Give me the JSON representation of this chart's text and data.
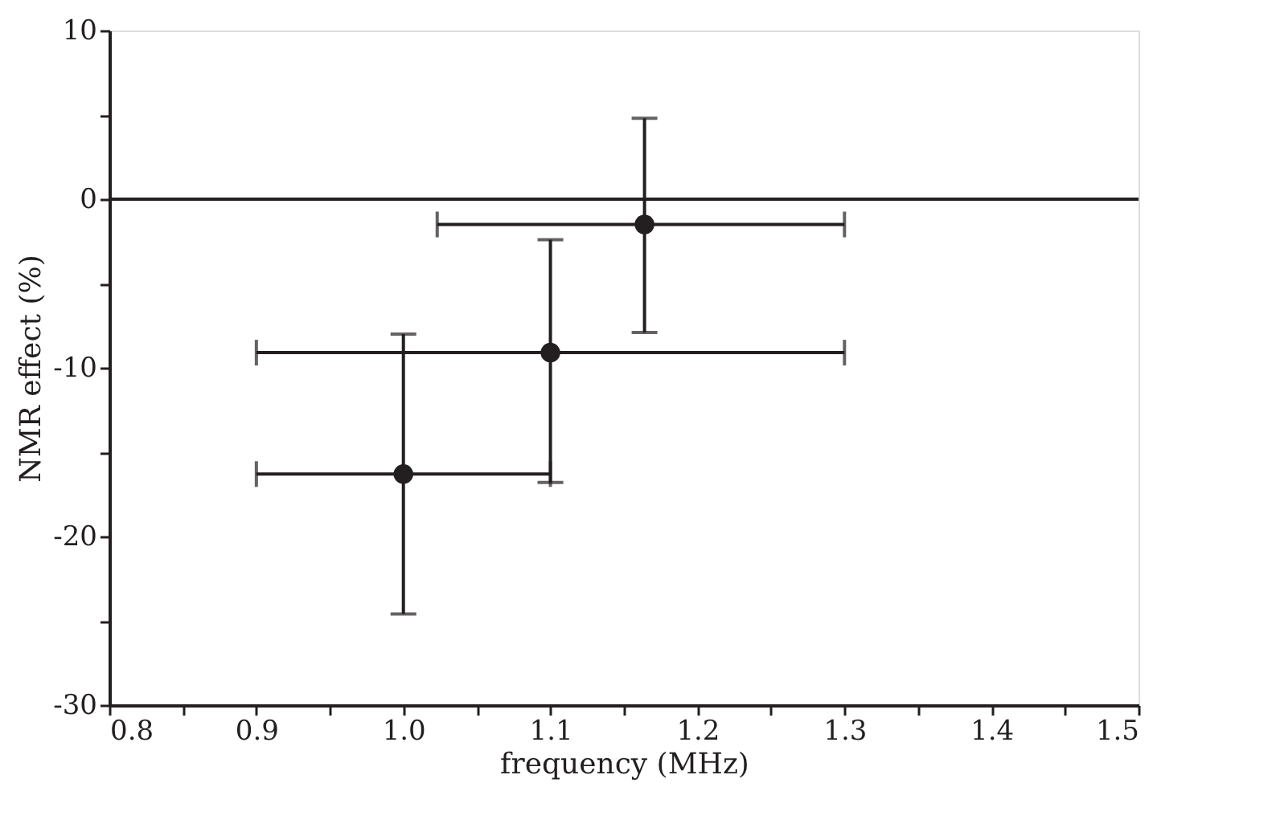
{
  "chart_data": {
    "type": "scatter",
    "xlabel": "frequency (MHz)",
    "ylabel": "NMR effect (%)",
    "x": [
      1.0,
      1.1,
      1.164
    ],
    "series": [
      {
        "color": "#231f20",
        "values": [
          -16.3,
          -9.1,
          -1.5
        ],
        "errors": [
          [
            -24.6,
            -8.0
          ],
          [
            -16.8,
            -2.4
          ],
          [
            -7.9,
            4.8
          ]
        ],
        "xerrors": [
          [
            0.9,
            1.1
          ],
          [
            0.9,
            1.3
          ],
          [
            1.023,
            1.3
          ]
        ]
      }
    ],
    "marker": "circle",
    "xlim": [
      0.8,
      1.5
    ],
    "ylim": [
      -30,
      10
    ],
    "xticks": [
      {
        "value": 0.8,
        "label": "0.8"
      },
      {
        "value": 0.85,
        "label": null
      },
      {
        "value": 0.9,
        "label": "0.9"
      },
      {
        "value": 0.95,
        "label": null
      },
      {
        "value": 1.0,
        "label": "1.0"
      },
      {
        "value": 1.05,
        "label": null
      },
      {
        "value": 1.1,
        "label": "1.1"
      },
      {
        "value": 1.15,
        "label": null
      },
      {
        "value": 1.2,
        "label": "1.2"
      },
      {
        "value": 1.25,
        "label": null
      },
      {
        "value": 1.3,
        "label": "1.3"
      },
      {
        "value": 1.35,
        "label": null
      },
      {
        "value": 1.4,
        "label": "1.4"
      },
      {
        "value": 1.45,
        "label": null
      },
      {
        "value": 1.5,
        "label": "1.5"
      }
    ],
    "yticks": [
      -30,
      {
        "value": -25,
        "label": null
      },
      -20,
      {
        "value": -15,
        "label": null
      },
      -10,
      {
        "value": -5,
        "label": null
      },
      0,
      {
        "value": 5,
        "label": null
      },
      10
    ],
    "ref_lines": [
      {
        "axis": "y",
        "value": 0,
        "color": "#231f20",
        "line_style": "solid"
      }
    ],
    "grid": false
  }
}
